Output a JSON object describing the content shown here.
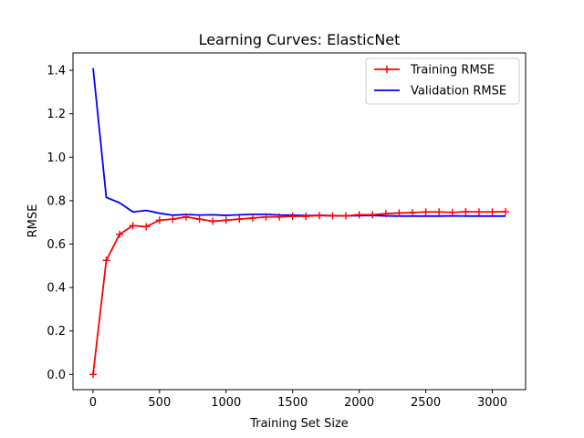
{
  "chart_data": {
    "type": "line",
    "title": "Learning Curves: ElasticNet",
    "xlabel": "Training Set Size",
    "ylabel": "RMSE",
    "xlim": [
      -150,
      3250
    ],
    "ylim": [
      -0.07,
      1.48
    ],
    "xticks": [
      0,
      500,
      1000,
      1500,
      2000,
      2500,
      3000
    ],
    "yticks": [
      0.0,
      0.2,
      0.4,
      0.6,
      0.8,
      1.0,
      1.2,
      1.4
    ],
    "grid": false,
    "legend_position": "top-right",
    "x": [
      1,
      100,
      200,
      300,
      400,
      500,
      600,
      700,
      800,
      900,
      1000,
      1100,
      1200,
      1300,
      1400,
      1500,
      1600,
      1700,
      1800,
      1900,
      2000,
      2100,
      2200,
      2300,
      2400,
      2500,
      2600,
      2700,
      2800,
      2900,
      3000,
      3100
    ],
    "series": [
      {
        "name": "Training RMSE",
        "color": "#ff0000",
        "marker": "plus",
        "values": [
          0.0,
          0.525,
          0.645,
          0.685,
          0.68,
          0.71,
          0.715,
          0.725,
          0.715,
          0.705,
          0.71,
          0.715,
          0.72,
          0.725,
          0.725,
          0.728,
          0.728,
          0.732,
          0.73,
          0.73,
          0.735,
          0.735,
          0.74,
          0.743,
          0.745,
          0.748,
          0.748,
          0.746,
          0.749,
          0.748,
          0.748,
          0.749
        ]
      },
      {
        "name": "Validation RMSE",
        "color": "#0000ff",
        "marker": "none",
        "values": [
          1.41,
          0.815,
          0.79,
          0.748,
          0.755,
          0.742,
          0.733,
          0.736,
          0.734,
          0.735,
          0.732,
          0.735,
          0.737,
          0.737,
          0.734,
          0.733,
          0.731,
          0.732,
          0.731,
          0.73,
          0.731,
          0.732,
          0.73,
          0.729,
          0.729,
          0.729,
          0.729,
          0.73,
          0.729,
          0.729,
          0.729,
          0.729
        ]
      }
    ]
  }
}
